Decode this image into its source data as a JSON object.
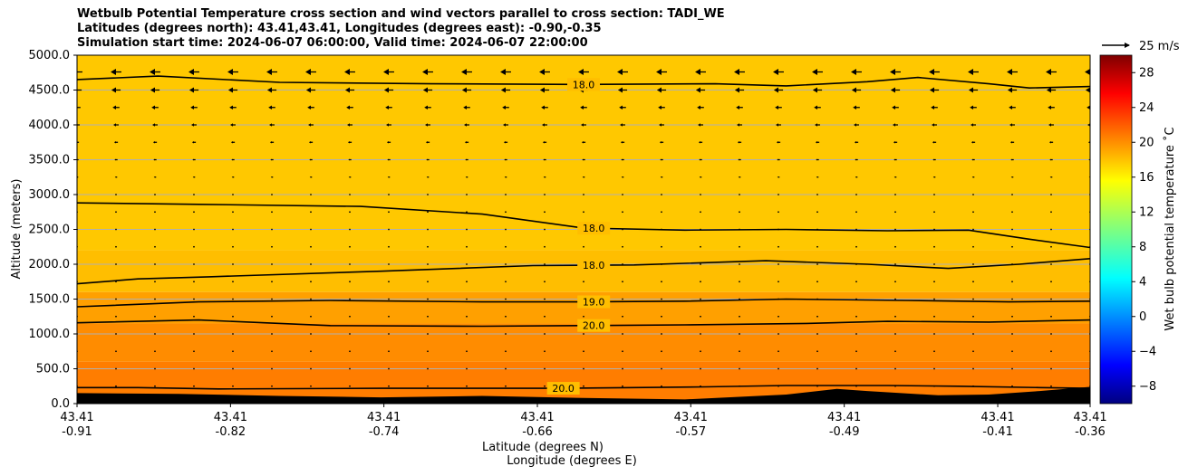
{
  "chart_data": {
    "type": "contour",
    "title_lines": [
      "Wetbulb Potential Temperature cross section and wind vectors parallel to cross section: TADI_WE",
      "Latitudes (degrees north): 43.41,43.41, Longitudes (degrees east): -0.90,-0.35",
      "Simulation start time: 2024-06-07 06:00:00, Valid time: 2024-06-07 22:00:00"
    ],
    "ylabel": "Altitude (meters)",
    "xlabel_lat": "Latitude (degrees N)",
    "xlabel_lon": "Longitude (degrees E)",
    "ylim": [
      0,
      5000
    ],
    "y_ticks": [
      0,
      500,
      1000,
      1500,
      2000,
      2500,
      3000,
      3500,
      4000,
      4500,
      5000
    ],
    "y_tick_labels": [
      "0.0",
      "500.0",
      "1000.0",
      "1500.0",
      "2000.0",
      "2500.0",
      "3000.0",
      "3500.0",
      "4000.0",
      "4500.0",
      "5000.0"
    ],
    "x_ticks": [
      {
        "lat": "43.41",
        "lon": "-0.91",
        "frac": 0.0
      },
      {
        "lat": "43.41",
        "lon": "-0.82",
        "frac": 0.1515
      },
      {
        "lat": "43.41",
        "lon": "-0.74",
        "frac": 0.3029
      },
      {
        "lat": "43.41",
        "lon": "-0.66",
        "frac": 0.4544
      },
      {
        "lat": "43.41",
        "lon": "-0.57",
        "frac": 0.6058
      },
      {
        "lat": "43.41",
        "lon": "-0.49",
        "frac": 0.7573
      },
      {
        "lat": "43.41",
        "lon": "-0.41",
        "frac": 0.9088
      },
      {
        "lat": "43.41",
        "lon": "-0.36",
        "frac": 1.0
      }
    ],
    "contours": [
      {
        "level": "18.0",
        "points": [
          [
            0,
            4650
          ],
          [
            0.08,
            4700
          ],
          [
            0.2,
            4610
          ],
          [
            0.35,
            4590
          ],
          [
            0.5,
            4580
          ],
          [
            0.63,
            4590
          ],
          [
            0.7,
            4560
          ],
          [
            0.78,
            4620
          ],
          [
            0.83,
            4680
          ],
          [
            0.9,
            4590
          ],
          [
            0.94,
            4530
          ],
          [
            1,
            4550
          ]
        ],
        "label_at": 0.5
      },
      {
        "level": "18.0",
        "points": [
          [
            0,
            2880
          ],
          [
            0.12,
            2860
          ],
          [
            0.28,
            2830
          ],
          [
            0.4,
            2720
          ],
          [
            0.5,
            2520
          ],
          [
            0.6,
            2490
          ],
          [
            0.7,
            2500
          ],
          [
            0.8,
            2480
          ],
          [
            0.88,
            2490
          ],
          [
            0.94,
            2360
          ],
          [
            1,
            2240
          ]
        ],
        "label_at": 0.51
      },
      {
        "level": "18.0",
        "points": [
          [
            0,
            1720
          ],
          [
            0.06,
            1790
          ],
          [
            0.13,
            1820
          ],
          [
            0.3,
            1900
          ],
          [
            0.45,
            1980
          ],
          [
            0.55,
            1990
          ],
          [
            0.68,
            2050
          ],
          [
            0.78,
            2000
          ],
          [
            0.86,
            1940
          ],
          [
            0.93,
            2000
          ],
          [
            1,
            2080
          ]
        ],
        "label_at": 0.51
      },
      {
        "level": "19.0",
        "points": [
          [
            0,
            1390
          ],
          [
            0.12,
            1460
          ],
          [
            0.25,
            1480
          ],
          [
            0.4,
            1460
          ],
          [
            0.5,
            1460
          ],
          [
            0.6,
            1470
          ],
          [
            0.7,
            1500
          ],
          [
            0.82,
            1480
          ],
          [
            0.92,
            1460
          ],
          [
            1,
            1470
          ]
        ],
        "label_at": 0.51
      },
      {
        "level": "20.0",
        "points": [
          [
            0,
            1160
          ],
          [
            0.12,
            1200
          ],
          [
            0.25,
            1120
          ],
          [
            0.4,
            1110
          ],
          [
            0.5,
            1120
          ],
          [
            0.6,
            1130
          ],
          [
            0.72,
            1150
          ],
          [
            0.8,
            1180
          ],
          [
            0.9,
            1170
          ],
          [
            1,
            1200
          ]
        ],
        "label_at": 0.51
      },
      {
        "level": "20.0",
        "points": [
          [
            0,
            230
          ],
          [
            0.06,
            230
          ],
          [
            0.14,
            210
          ],
          [
            0.3,
            220
          ],
          [
            0.48,
            220
          ],
          [
            0.62,
            240
          ],
          [
            0.7,
            260
          ],
          [
            0.8,
            260
          ],
          [
            0.87,
            250
          ],
          [
            0.95,
            230
          ],
          [
            1,
            220
          ]
        ],
        "label_at": 0.48
      }
    ],
    "terrain": [
      [
        0,
        150
      ],
      [
        0.1,
        140
      ],
      [
        0.2,
        110
      ],
      [
        0.3,
        90
      ],
      [
        0.4,
        110
      ],
      [
        0.5,
        80
      ],
      [
        0.6,
        60
      ],
      [
        0.7,
        130
      ],
      [
        0.75,
        210
      ],
      [
        0.78,
        180
      ],
      [
        0.85,
        120
      ],
      [
        0.9,
        130
      ],
      [
        0.95,
        180
      ],
      [
        1,
        240
      ]
    ],
    "wind_rows": [
      {
        "alt": 4760,
        "u": -14
      },
      {
        "alt": 4500,
        "u": -12
      },
      {
        "alt": 4250,
        "u": -9
      },
      {
        "alt": 4000,
        "u": -7
      },
      {
        "alt": 3750,
        "u": -5
      },
      {
        "alt": 3500,
        "u": -4
      },
      {
        "alt": 3250,
        "u": -3
      },
      {
        "alt": 3000,
        "u": -2
      },
      {
        "alt": 2750,
        "u": -2
      },
      {
        "alt": 2500,
        "u": -1
      },
      {
        "alt": 2250,
        "u": -1
      },
      {
        "alt": 2000,
        "u": -0.5
      },
      {
        "alt": 1750,
        "u": -0.5
      },
      {
        "alt": 1500,
        "u": -0.3
      },
      {
        "alt": 1250,
        "u": -0.2
      },
      {
        "alt": 1000,
        "u": -0.2
      },
      {
        "alt": 750,
        "u": -0.1
      },
      {
        "alt": 500,
        "u": -0.1
      },
      {
        "alt": 250,
        "u": -0.1
      }
    ],
    "wind_columns": 27,
    "quiver_key": "25 m/s",
    "colorbar": {
      "label": "Wet bulb potential temperature $^\\circ$C",
      "label_display": "Wet bulb potential temperature ˚C",
      "range": [
        -10,
        30
      ],
      "ticks": [
        -8,
        -4,
        0,
        4,
        8,
        12,
        16,
        20,
        24,
        28
      ],
      "tick_labels": [
        "−8",
        "−4",
        "0",
        "4",
        "8",
        "12",
        "16",
        "20",
        "24",
        "28"
      ]
    },
    "fill_bands": [
      {
        "alt_top": 5000,
        "color": "#ffc800"
      },
      {
        "alt_top": 2200,
        "color": "#ffbe00"
      },
      {
        "alt_top": 1600,
        "color": "#ffa000"
      },
      {
        "alt_top": 1150,
        "color": "#ff8c00"
      },
      {
        "alt_top": 600,
        "color": "#ff7d00"
      }
    ]
  }
}
